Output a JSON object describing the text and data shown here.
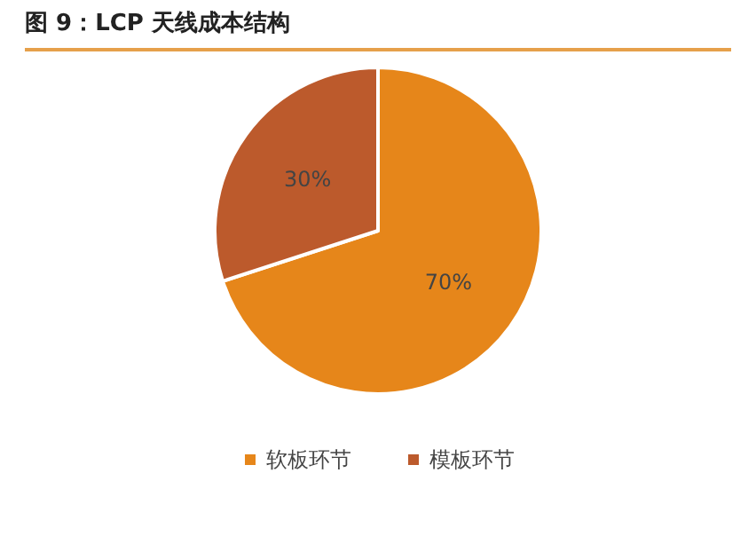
{
  "chart_data": {
    "type": "pie",
    "title": "图 9：LCP 天线成本结构",
    "categories": [
      "软板环节",
      "模板环节"
    ],
    "values": [
      70,
      30
    ],
    "colors": [
      "#e6861a",
      "#bc5a2c"
    ],
    "value_labels": [
      "70%",
      "30%"
    ],
    "legend": "bottom"
  }
}
